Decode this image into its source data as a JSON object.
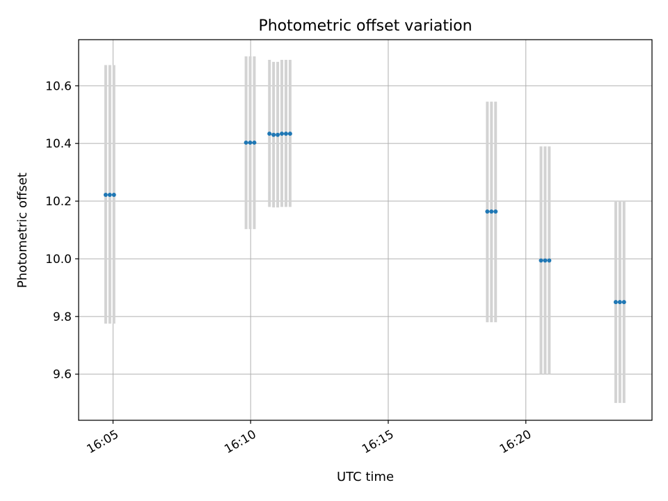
{
  "chart_data": {
    "type": "scatter",
    "title": "Photometric offset variation",
    "xlabel": "UTC time",
    "ylabel": "Photometric offset",
    "xlim": [
      "16:03:45",
      "16:24:35"
    ],
    "ylim": [
      9.44,
      10.76
    ],
    "x_ticks": [
      {
        "value": "16:05:00",
        "label": "16:05"
      },
      {
        "value": "16:10:00",
        "label": "16:10"
      },
      {
        "value": "16:15:00",
        "label": "16:15"
      },
      {
        "value": "16:20:00",
        "label": "16:20"
      }
    ],
    "y_ticks": [
      {
        "value": 9.6,
        "label": "9.6"
      },
      {
        "value": 9.8,
        "label": "9.8"
      },
      {
        "value": 10.0,
        "label": "10.0"
      },
      {
        "value": 10.2,
        "label": "10.2"
      },
      {
        "value": 10.4,
        "label": "10.4"
      },
      {
        "value": 10.6,
        "label": "10.6"
      }
    ],
    "grid": true,
    "colors": {
      "points": "#1f77b4",
      "error_bars": "#d3d3d3",
      "grid": "#b0b0b0"
    },
    "points": [
      {
        "x": "16:04:44",
        "y": 10.222,
        "low": 9.775,
        "high": 10.672
      },
      {
        "x": "16:04:53",
        "y": 10.222,
        "low": 9.775,
        "high": 10.672
      },
      {
        "x": "16:05:02",
        "y": 10.222,
        "low": 9.775,
        "high": 10.672
      },
      {
        "x": "16:09:50",
        "y": 10.403,
        "low": 10.103,
        "high": 10.702
      },
      {
        "x": "16:09:59",
        "y": 10.403,
        "low": 10.103,
        "high": 10.702
      },
      {
        "x": "16:10:08",
        "y": 10.403,
        "low": 10.103,
        "high": 10.702
      },
      {
        "x": "16:10:41",
        "y": 10.434,
        "low": 10.18,
        "high": 10.69
      },
      {
        "x": "16:10:50",
        "y": 10.43,
        "low": 10.178,
        "high": 10.683
      },
      {
        "x": "16:10:59",
        "y": 10.43,
        "low": 10.178,
        "high": 10.683
      },
      {
        "x": "16:11:08",
        "y": 10.434,
        "low": 10.18,
        "high": 10.69
      },
      {
        "x": "16:11:17",
        "y": 10.434,
        "low": 10.18,
        "high": 10.69
      },
      {
        "x": "16:11:26",
        "y": 10.434,
        "low": 10.18,
        "high": 10.69
      },
      {
        "x": "16:18:36",
        "y": 10.164,
        "low": 9.78,
        "high": 10.545
      },
      {
        "x": "16:18:45",
        "y": 10.164,
        "low": 9.78,
        "high": 10.545
      },
      {
        "x": "16:18:54",
        "y": 10.164,
        "low": 9.78,
        "high": 10.545
      },
      {
        "x": "16:20:33",
        "y": 9.994,
        "low": 9.6,
        "high": 10.39
      },
      {
        "x": "16:20:42",
        "y": 9.994,
        "low": 9.6,
        "high": 10.39
      },
      {
        "x": "16:20:51",
        "y": 9.994,
        "low": 9.6,
        "high": 10.39
      },
      {
        "x": "16:23:16",
        "y": 9.85,
        "low": 9.5,
        "high": 10.2
      },
      {
        "x": "16:23:25",
        "y": 9.85,
        "low": 9.5,
        "high": 10.2
      },
      {
        "x": "16:23:34",
        "y": 9.85,
        "low": 9.5,
        "high": 10.2
      }
    ]
  }
}
